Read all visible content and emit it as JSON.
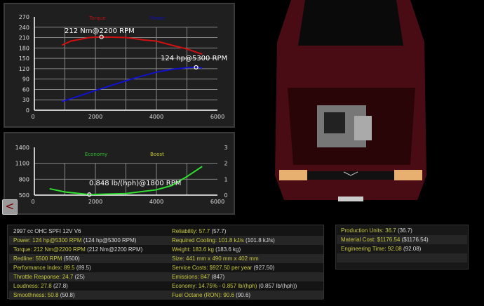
{
  "chart_data": [
    {
      "type": "line",
      "xlim": [
        0,
        6000
      ],
      "ylim": [
        0,
        270
      ],
      "xticks": [
        0,
        2000,
        4000,
        6000
      ],
      "yticks": [
        0,
        30,
        60,
        90,
        120,
        150,
        180,
        210,
        240,
        270
      ],
      "grid": true,
      "series": [
        {
          "name": "Torque",
          "color": "#d01010",
          "x": [
            900,
            1200,
            1800,
            2200,
            3000,
            3600,
            4000,
            4500,
            5000,
            5500
          ],
          "y": [
            188,
            200,
            210,
            212,
            210,
            203,
            200,
            188,
            177,
            162
          ],
          "peak": {
            "x": 2200,
            "y": 212,
            "label": "212 Nm@2200 RPM"
          }
        },
        {
          "name": "Power",
          "color": "#1010d0",
          "x": [
            900,
            1500,
            2000,
            3000,
            3500,
            4000,
            4500,
            5000,
            5300,
            5500
          ],
          "y": [
            25,
            42,
            57,
            85,
            98,
            110,
            118,
            123,
            124,
            122
          ],
          "peak": {
            "x": 5300,
            "y": 124,
            "label": "124 hp@5300 RPM"
          }
        }
      ]
    },
    {
      "type": "line",
      "xlim": [
        0,
        6000
      ],
      "ylim": [
        500,
        1400
      ],
      "y2lim": [
        0,
        3
      ],
      "xticks": [
        0,
        2000,
        4000,
        6000
      ],
      "yticks": [
        500,
        800,
        1100,
        1400
      ],
      "y2ticks": [
        0,
        1,
        2,
        3
      ],
      "grid": true,
      "legend": [
        {
          "name": "Economy",
          "color": "#30c030"
        },
        {
          "name": "Boost",
          "color": "#c8c830"
        }
      ],
      "series": [
        {
          "name": "Economy",
          "color": "#30e030",
          "x": [
            500,
            1000,
            1800,
            3000,
            4000,
            4500,
            5000,
            5500
          ],
          "y": [
            620,
            560,
            510,
            530,
            600,
            680,
            850,
            1040
          ],
          "peak": {
            "x": 1800,
            "y": 510,
            "label": "0.848 lb/(hph)@1800 RPM"
          }
        }
      ]
    }
  ],
  "back_label": "<",
  "stats_left": [
    {
      "k": "2997 cc OHC SPFI 12V V6",
      "v": "",
      "p": "",
      "plain": true
    },
    {
      "k": "Power: ",
      "v": "124 hp@5300 RPM",
      "p": " (124 hp@5300 RPM)"
    },
    {
      "k": "Torque: ",
      "v": "212 Nm@2200 RPM",
      "p": " (212 Nm@2200 RPM)"
    },
    {
      "k": "Redline: ",
      "v": "5500 RPM",
      "p": " (5500)"
    },
    {
      "k": "Performance Index: ",
      "v": "89.5",
      "p": " (89.5)"
    },
    {
      "k": "Throttle Response: ",
      "v": "24.7",
      "p": " (25)"
    },
    {
      "k": "Loudness: ",
      "v": "27.8",
      "p": " (27.8)"
    },
    {
      "k": "Smoothness: ",
      "v": "50.8",
      "p": " (50.8)"
    }
  ],
  "stats_mid": [
    {
      "k": "Reliability: ",
      "v": "57.7",
      "p": " (57.7)"
    },
    {
      "k": "Required Cooling: ",
      "v": "101.8 kJ/s",
      "p": " (101.8 kJ/s)"
    },
    {
      "k": "Weight: ",
      "v": "183.6 kg",
      "p": " (183.6 kg)"
    },
    {
      "k": "Size: ",
      "v": "441 mm x 490 mm x 402 mm",
      "p": ""
    },
    {
      "k": "Service Costs: ",
      "v": "$927.50 per year",
      "p": " (927.50)"
    },
    {
      "k": "Emissions: ",
      "v": "847",
      "p": " (847)"
    },
    {
      "k": "Economy: ",
      "v": "14.75% - 0.857 lb/(hph)",
      "p": " (0.857 lb/(hph))"
    },
    {
      "k": "Fuel Octane (RON): ",
      "v": "90.6",
      "p": " (90.6)"
    }
  ],
  "stats_right": [
    {
      "k": "Production Units: ",
      "v": "36.7",
      "p": " (36.7)"
    },
    {
      "k": "Material Cost: ",
      "v": "$1176.54",
      "p": " ($1176.54)"
    },
    {
      "k": "Engineering Time: ",
      "v": "92.08",
      "p": " (92.08)"
    },
    {
      "k": "",
      "v": "",
      "p": ""
    },
    {
      "k": "",
      "v": "",
      "p": ""
    }
  ]
}
